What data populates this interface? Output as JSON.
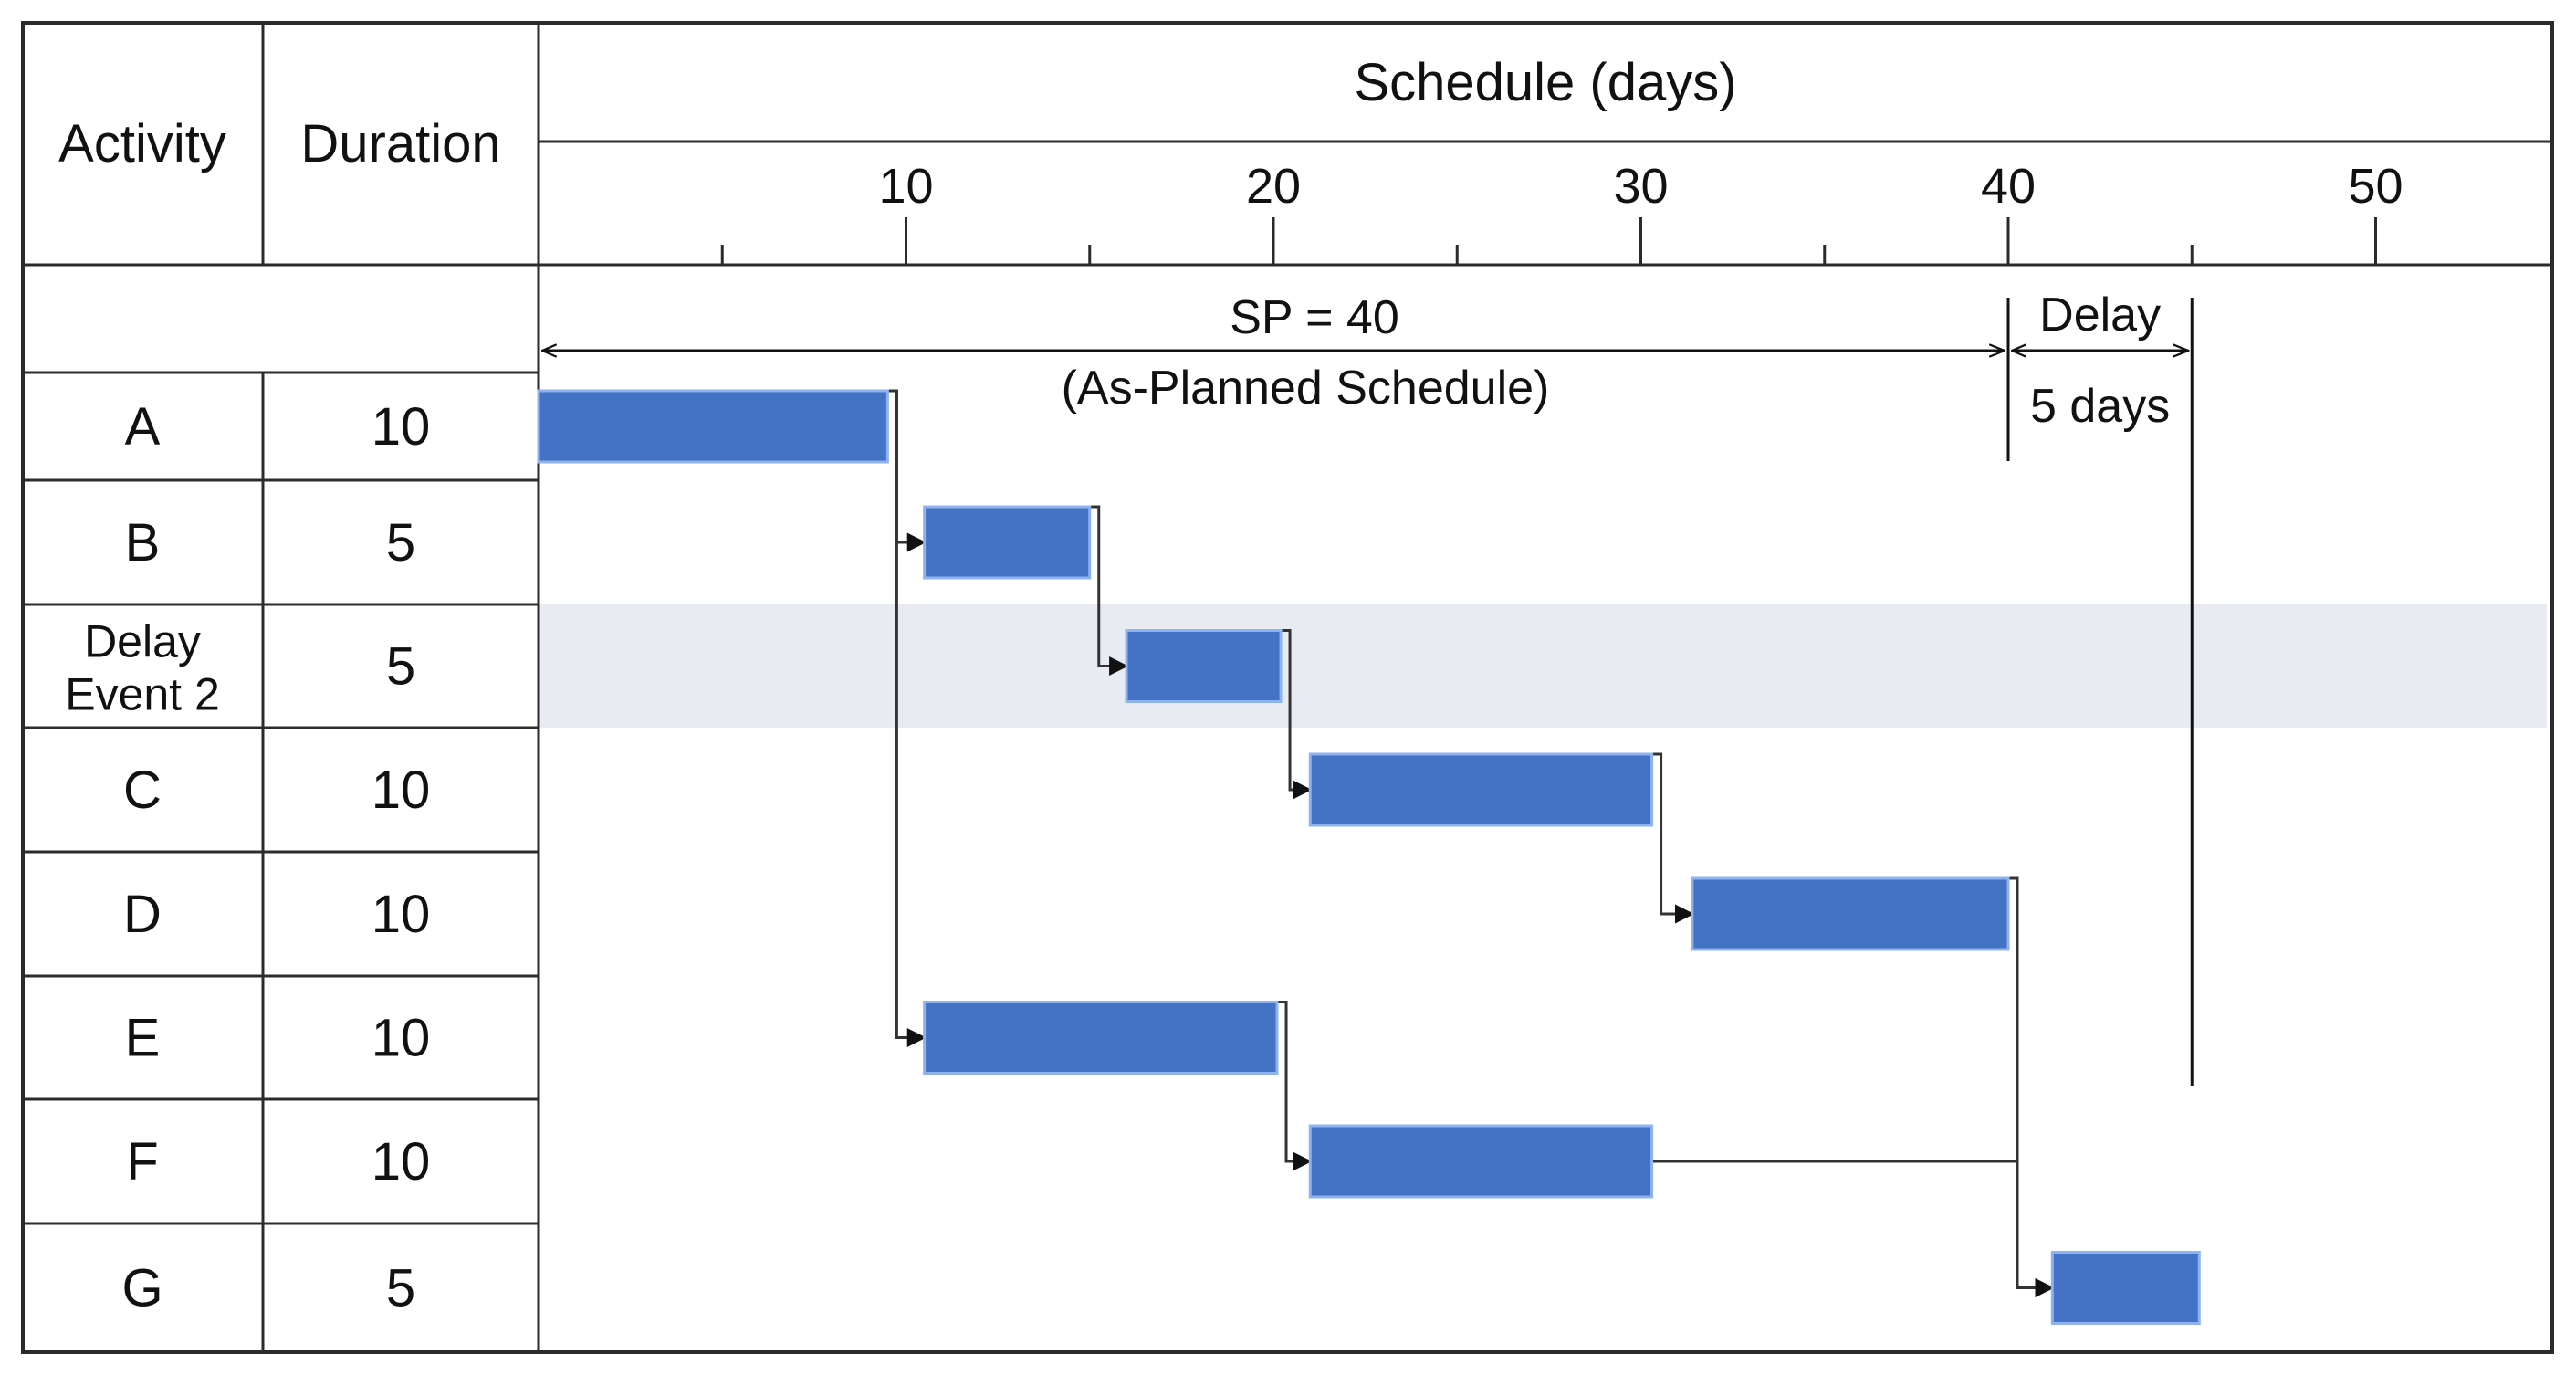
{
  "table": {
    "activity_header": "Activity",
    "duration_header": "Duration",
    "schedule_header": "Schedule (days)"
  },
  "axis": {
    "ticks": [
      "10",
      "20",
      "30",
      "40",
      "50"
    ],
    "minor_ticks": [
      5,
      15,
      25,
      35,
      45
    ]
  },
  "rows": [
    {
      "activity": "A",
      "duration": "10",
      "start": 0,
      "end": 9.5
    },
    {
      "activity": "B",
      "duration": "5",
      "start": 10.5,
      "end": 15
    },
    {
      "activity": "Delay Event 2",
      "activity_line1": "Delay",
      "activity_line2": "Event 2",
      "duration": "5",
      "start": 16,
      "end": 20.2,
      "highlighted": true,
      "hatched": true
    },
    {
      "activity": "C",
      "duration": "10",
      "start": 21,
      "end": 30.3
    },
    {
      "activity": "D",
      "duration": "10",
      "start": 31.4,
      "end": 40
    },
    {
      "activity": "E",
      "duration": "10",
      "start": 10.5,
      "end": 20.1
    },
    {
      "activity": "F",
      "duration": "10",
      "start": 21,
      "end": 30.3
    },
    {
      "activity": "G",
      "duration": "5",
      "start": 41.2,
      "end": 45.2
    }
  ],
  "annotations": {
    "sp_label": "SP = 40",
    "sp_sublabel": "(As-Planned Schedule)",
    "delay_label": "Delay",
    "delay_sublabel": "5 days",
    "planned_finish": 40,
    "delayed_finish": 45
  },
  "colors": {
    "bar": "#4472c4",
    "bar_outline": "#8fb3ee",
    "hatch_red": "#c00000",
    "highlight_row": "#e8ecf2"
  },
  "icons": {
    "dependency_arrow": "arrowhead-right"
  }
}
